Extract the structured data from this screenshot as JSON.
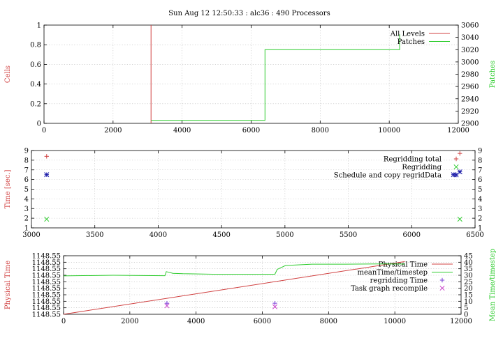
{
  "page": {
    "title": "Sun Aug 12 12:50:33 : alc36 : 490 Processors"
  },
  "colors": {
    "red": "#d04040",
    "green": "#2ecc2e",
    "blue": "#1a1aa8",
    "purple": "#7a3fd6",
    "magenta": "#cc44cc"
  },
  "chart_data": [
    {
      "type": "line",
      "title": "Sun Aug 12 12:50:33 : alc36 : 490 Processors",
      "xlabel": "",
      "ylabel": "Cells",
      "y2label": "Patches",
      "xlim": [
        0,
        12000
      ],
      "ylim": [
        0,
        1
      ],
      "y2lim": [
        2900,
        3060
      ],
      "xticks": [
        "0",
        "2000",
        "4000",
        "6000",
        "8000",
        "10000",
        "12000"
      ],
      "yticks": [
        "0",
        "0.2",
        "0.4",
        "0.6",
        "0.8",
        "1"
      ],
      "y2ticks": [
        "2900",
        "2920",
        "2940",
        "2960",
        "2980",
        "3000",
        "3020",
        "3040",
        "3060"
      ],
      "grid": true,
      "legend_position": "top-right",
      "series": [
        {
          "name": "All Levels",
          "color": "#d04040",
          "axis": "y",
          "points": [
            [
              3100,
              1
            ],
            [
              3100,
              0
            ]
          ]
        },
        {
          "name": "Patches",
          "color": "#2ecc2e",
          "axis": "y2",
          "points": [
            [
              3100,
              2905
            ],
            [
              6400,
              2905
            ],
            [
              6400,
              3020
            ],
            [
              10300,
              3020
            ],
            [
              10300,
              3045
            ]
          ]
        }
      ]
    },
    {
      "type": "scatter",
      "xlabel": "",
      "ylabel": "Time [sec.]",
      "xlim": [
        3000,
        6500
      ],
      "ylim": [
        1,
        9
      ],
      "y2lim": [
        1,
        9
      ],
      "xticks": [
        "3000",
        "3500",
        "4000",
        "4500",
        "5000",
        "5500",
        "6000",
        "6500"
      ],
      "yticks": [
        "1",
        "2",
        "3",
        "4",
        "5",
        "6",
        "7",
        "8",
        "9"
      ],
      "y2ticks": [
        "1",
        "2",
        "3",
        "4",
        "5",
        "6",
        "7",
        "8",
        "9"
      ],
      "grid": true,
      "legend_position": "top-right",
      "series": [
        {
          "name": "Regridding total",
          "color": "#d04040",
          "marker": "plus",
          "points": [
            [
              3120,
              8.4
            ],
            [
              6380,
              8.7
            ]
          ]
        },
        {
          "name": "Regridding",
          "color": "#2ecc2e",
          "marker": "cross",
          "points": [
            [
              3120,
              1.9
            ],
            [
              6380,
              1.9
            ]
          ]
        },
        {
          "name": "Schedule and copy regridData",
          "color": "#1a1aa8",
          "marker": "star",
          "points": [
            [
              3120,
              6.5
            ],
            [
              6330,
              6.5
            ],
            [
              6380,
              6.8
            ]
          ]
        }
      ]
    },
    {
      "type": "line",
      "xlabel": "",
      "ylabel": "Physical Time",
      "y2label": "Mean Time/timestep",
      "xlim": [
        0,
        12000
      ],
      "ylim": [
        0,
        9
      ],
      "y2lim": [
        0,
        45
      ],
      "xticks": [
        "0",
        "2000",
        "4000",
        "6000",
        "8000",
        "10000",
        "12000"
      ],
      "yticks": [
        "1148.55",
        "1148.55",
        "1148.55",
        "1148.55",
        "1148.55",
        "1148.55",
        "1148.55",
        "1148.55",
        "1148.55",
        "1148.55"
      ],
      "y2ticks": [
        "0",
        "5",
        "10",
        "15",
        "20",
        "25",
        "30",
        "35",
        "40",
        "45"
      ],
      "grid": true,
      "legend_position": "top-right",
      "series": [
        {
          "name": "Physical Time",
          "color": "#d04040",
          "axis": "y",
          "points": [
            [
              0,
              0
            ],
            [
              10300,
              8.1
            ]
          ]
        },
        {
          "name": "meanTime/timestep",
          "color": "#2ecc2e",
          "axis": "y2",
          "points": [
            [
              0,
              29.5
            ],
            [
              1500,
              30
            ],
            [
              3000,
              29.7
            ],
            [
              3060,
              29.7
            ],
            [
              3100,
              32.8
            ],
            [
              3300,
              31.5
            ],
            [
              3600,
              31.2
            ],
            [
              4500,
              30.8
            ],
            [
              5500,
              30.8
            ],
            [
              6380,
              30.8
            ],
            [
              6450,
              34.5
            ],
            [
              6700,
              37.5
            ],
            [
              7500,
              38.5
            ],
            [
              8500,
              38.5
            ],
            [
              9500,
              38.7
            ],
            [
              10300,
              38.6
            ]
          ]
        },
        {
          "name": "regridding Time",
          "color": "#7a3fd6",
          "marker": "plus",
          "axis": "y2",
          "points": [
            [
              3120,
              8.5
            ],
            [
              6380,
              8.5
            ]
          ]
        },
        {
          "name": "Task graph recompile",
          "color": "#cc44cc",
          "marker": "cross",
          "axis": "y2",
          "points": [
            [
              3120,
              6.5
            ],
            [
              6380,
              5.8
            ]
          ]
        }
      ]
    }
  ]
}
